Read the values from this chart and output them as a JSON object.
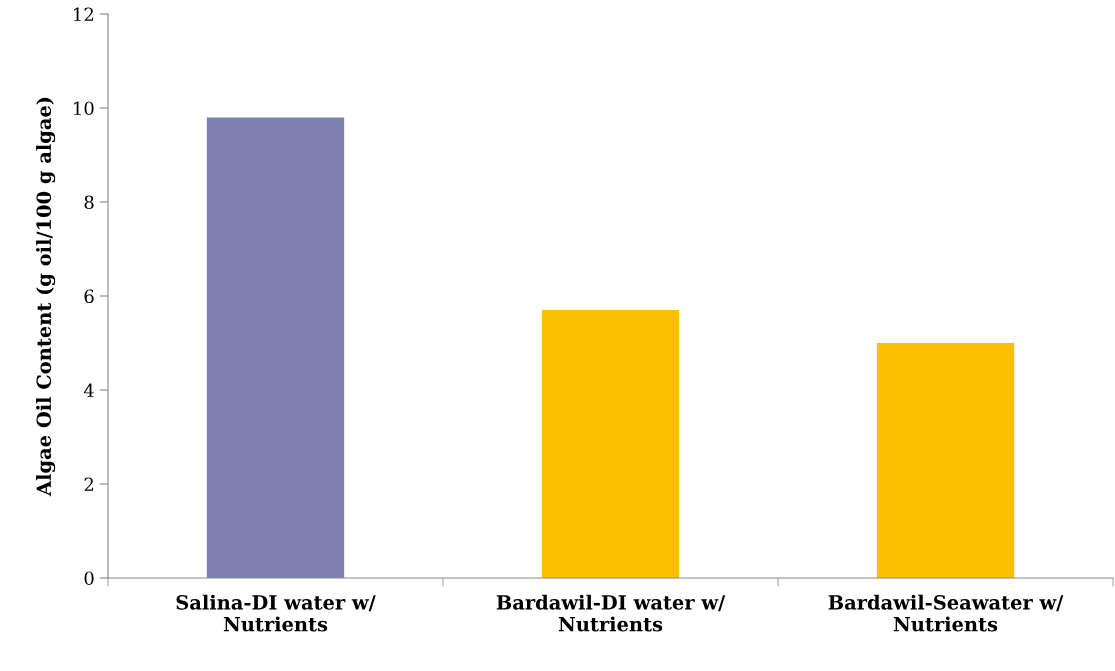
{
  "chart_data": {
    "type": "bar",
    "ylabel": "Algae Oil Content (g oil/100 g algae)",
    "categories": [
      "Salina-DI water w/\nNutrients",
      "Bardawil-DI water w/\nNutrients",
      "Bardawil-Seawater w/\nNutrients"
    ],
    "values": [
      9.8,
      5.7,
      5.0
    ],
    "colors": [
      "#7e81b0",
      "#fcc000",
      "#fcc000"
    ],
    "ylim": [
      0,
      12
    ],
    "yticks": [
      0,
      2,
      4,
      6,
      8,
      10,
      12
    ],
    "grid": false,
    "legend": false
  }
}
